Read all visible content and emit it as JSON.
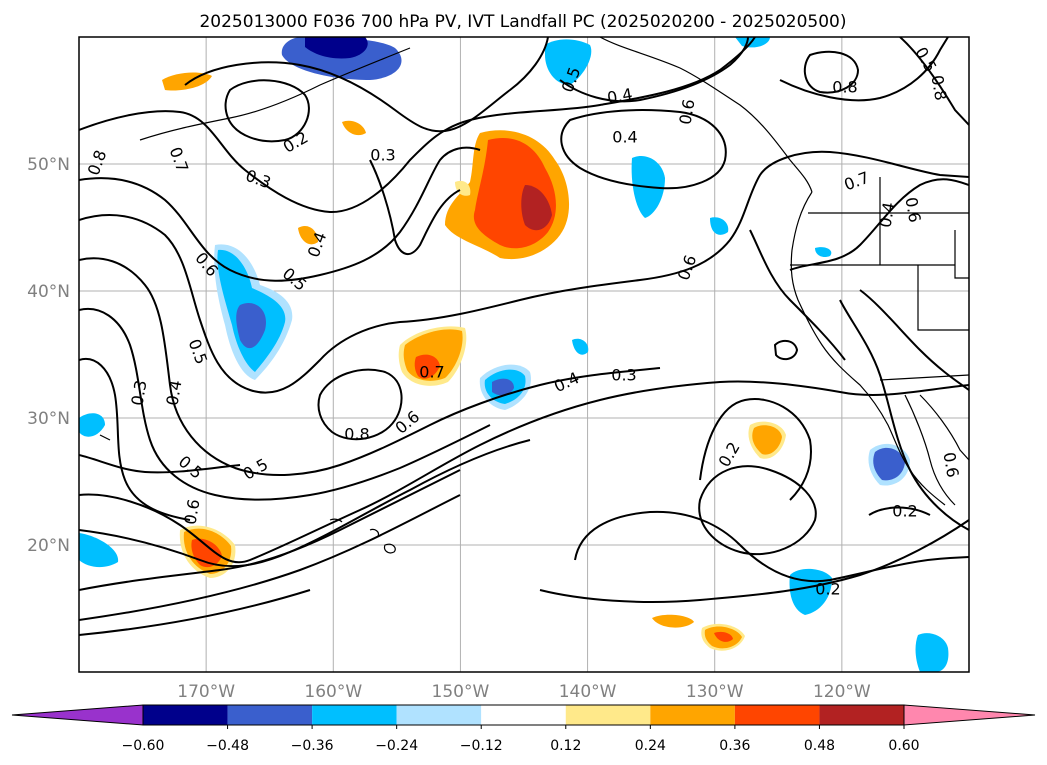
{
  "title": "2025013000 F036 700 hPa PV, IVT Landfall PC (2025020200 - 2025020500)",
  "map": {
    "lat_ticks": [
      {
        "label": "50°N",
        "lat": 50
      },
      {
        "label": "40°N",
        "lat": 40
      },
      {
        "label": "30°N",
        "lat": 30
      },
      {
        "label": "20°N",
        "lat": 20
      }
    ],
    "lon_ticks": [
      {
        "label": "170°W",
        "lon": -170
      },
      {
        "label": "160°W",
        "lon": -160
      },
      {
        "label": "150°W",
        "lon": -150
      },
      {
        "label": "140°W",
        "lon": -140
      },
      {
        "label": "130°W",
        "lon": -130
      },
      {
        "label": "120°W",
        "lon": -120
      }
    ],
    "extent": {
      "lon_min": -180,
      "lon_max": -110,
      "lat_min": 10,
      "lat_max": 60
    },
    "gridlines": true,
    "contour_labels": [
      "0.8",
      "0.7",
      "0.2",
      "0.3",
      "0.3",
      "0.6",
      "0.5",
      "0.4",
      "0.5",
      "0.3",
      "0.4",
      "0.5",
      "0.6",
      "0.8",
      "0.6",
      "0.7",
      "0.4",
      "0.3",
      "0.5",
      "0.4",
      "0.6",
      "0.2",
      "0.2",
      "0.2",
      "0.6",
      "0.4",
      "0.8",
      "0.8",
      "0.5",
      "0.7",
      "0.4",
      "0.5",
      "0.6",
      "0.6"
    ]
  },
  "colorbar": {
    "tick_labels": [
      "−0.60",
      "−0.48",
      "−0.36",
      "−0.24",
      "−0.12",
      "0.12",
      "0.24",
      "0.36",
      "0.48",
      "0.60"
    ],
    "colors": [
      "#9932CC",
      "#00008B",
      "#3A5FCD",
      "#00BFFF",
      "#B0E2FF",
      "#FFFFFF",
      "#FFE98A",
      "#FFA500",
      "#FF4500",
      "#B22222",
      "#FF87AE"
    ]
  }
}
